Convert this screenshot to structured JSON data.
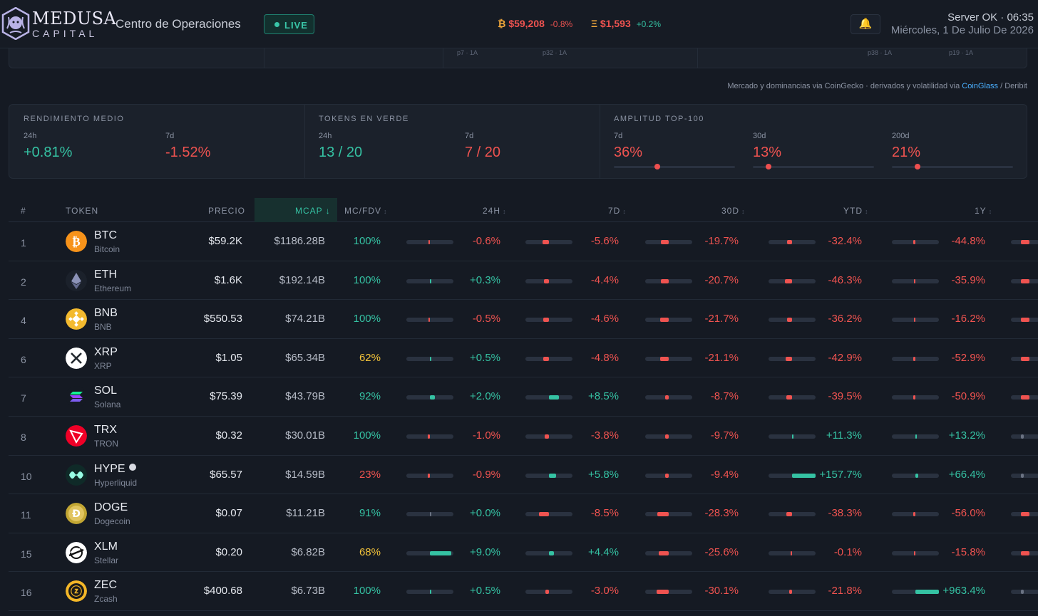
{
  "brand": {
    "name": "MEDUSA",
    "sub": "CAPITAL"
  },
  "header": {
    "title": "Centro de Operaciones",
    "live_label": "LIVE",
    "status": "Server OK · 06:35",
    "date": "Miércoles, 1 De Julio De 2026"
  },
  "tickers": [
    {
      "symbol": "₿",
      "price": "$59,208",
      "change": "-0.8%"
    },
    {
      "symbol": "Ξ",
      "price": "$1,593",
      "change": "+0.2%"
    }
  ],
  "prev_panel": {
    "labels": [
      "p7 · 1A",
      "p32 · 1A",
      "p38 · 1A",
      "p19 · 1A"
    ]
  },
  "source": {
    "prefix": "Mercado y dominancias via CoinGecko · derivados y volatilidad via ",
    "link": "CoinGlass",
    "suffix": " / Deribit"
  },
  "stats": {
    "rendimiento": {
      "label": "RENDIMIENTO MEDIO",
      "p1_label": "24h",
      "p1_value": "+0.81%",
      "p2_label": "7d",
      "p2_value": "-1.52%"
    },
    "verdes": {
      "label": "TOKENS EN VERDE",
      "p1_label": "24h",
      "p1_value": "13 / 20",
      "p2_label": "7d",
      "p2_value": "7 / 20"
    },
    "amplitud": {
      "label": "AMPLITUD TOP-100",
      "items": [
        {
          "label": "7d",
          "value": "36%",
          "level": 0.36
        },
        {
          "label": "30d",
          "value": "13%",
          "level": 0.13
        },
        {
          "label": "200d",
          "value": "21%",
          "level": 0.21
        }
      ]
    }
  },
  "table": {
    "headers": {
      "rank": "#",
      "token": "TOKEN",
      "price": "PRECIO",
      "mcap": "MCAP",
      "mcfdv": "MC/FDV",
      "h24": "24H",
      "d7": "7D",
      "d30": "30D",
      "ytd": "YTD",
      "y1": "1Y"
    },
    "sort_glyph": "↕",
    "sort_active_glyph": "↓",
    "rows": [
      {
        "rank": "1",
        "symbol": "BTC",
        "name": "Bitcoin",
        "icon": "bitcoin-icon",
        "price": "$59.2K",
        "mcap": "$1186.28B",
        "mcfdv": "100%",
        "h24": "-0.6%",
        "d7": "-5.6%",
        "d30": "-19.7%",
        "ytd": "-32.4%",
        "y1": "-44.8%"
      },
      {
        "rank": "2",
        "symbol": "ETH",
        "name": "Ethereum",
        "icon": "ethereum-icon",
        "price": "$1.6K",
        "mcap": "$192.14B",
        "mcfdv": "100%",
        "h24": "+0.3%",
        "d7": "-4.4%",
        "d30": "-20.7%",
        "ytd": "-46.3%",
        "y1": "-35.9%"
      },
      {
        "rank": "4",
        "symbol": "BNB",
        "name": "BNB",
        "icon": "bnb-icon",
        "price": "$550.53",
        "mcap": "$74.21B",
        "mcfdv": "100%",
        "h24": "-0.5%",
        "d7": "-4.6%",
        "d30": "-21.7%",
        "ytd": "-36.2%",
        "y1": "-16.2%"
      },
      {
        "rank": "6",
        "symbol": "XRP",
        "name": "XRP",
        "icon": "xrp-icon",
        "price": "$1.05",
        "mcap": "$65.34B",
        "mcfdv": "62%",
        "h24": "+0.5%",
        "d7": "-4.8%",
        "d30": "-21.1%",
        "ytd": "-42.9%",
        "y1": "-52.9%"
      },
      {
        "rank": "7",
        "symbol": "SOL",
        "name": "Solana",
        "icon": "solana-icon",
        "price": "$75.39",
        "mcap": "$43.79B",
        "mcfdv": "92%",
        "h24": "+2.0%",
        "d7": "+8.5%",
        "d30": "-8.7%",
        "ytd": "-39.5%",
        "y1": "-50.9%"
      },
      {
        "rank": "8",
        "symbol": "TRX",
        "name": "TRON",
        "icon": "tron-icon",
        "price": "$0.32",
        "mcap": "$30.01B",
        "mcfdv": "100%",
        "h24": "-1.0%",
        "d7": "-3.8%",
        "d30": "-9.7%",
        "ytd": "+11.3%",
        "y1": "+13.2%"
      },
      {
        "rank": "10",
        "symbol": "HYPE",
        "name": "Hyperliquid",
        "icon": "hyperliquid-icon",
        "price": "$65.57",
        "mcap": "$14.59B",
        "mcfdv": "23%",
        "h24": "-0.9%",
        "d7": "+5.8%",
        "d30": "-9.4%",
        "ytd": "+157.7%",
        "y1": "+66.4%",
        "dot": true
      },
      {
        "rank": "11",
        "symbol": "DOGE",
        "name": "Dogecoin",
        "icon": "dogecoin-icon",
        "price": "$0.07",
        "mcap": "$11.21B",
        "mcfdv": "91%",
        "h24": "+0.0%",
        "d7": "-8.5%",
        "d30": "-28.3%",
        "ytd": "-38.3%",
        "y1": "-56.0%"
      },
      {
        "rank": "15",
        "symbol": "XLM",
        "name": "Stellar",
        "icon": "stellar-icon",
        "price": "$0.20",
        "mcap": "$6.82B",
        "mcfdv": "68%",
        "h24": "+9.0%",
        "d7": "+4.4%",
        "d30": "-25.6%",
        "ytd": "-0.1%",
        "y1": "-15.8%"
      },
      {
        "rank": "16",
        "symbol": "ZEC",
        "name": "Zcash",
        "icon": "zcash-icon",
        "price": "$400.68",
        "mcap": "$6.73B",
        "mcfdv": "100%",
        "h24": "+0.5%",
        "d7": "-3.0%",
        "d30": "-30.1%",
        "ytd": "-21.8%",
        "y1": "+963.4%"
      }
    ]
  },
  "colors": {
    "positive": "#35c2a3",
    "negative": "#ef5350",
    "warning": "#f3c33a",
    "accent": "#35c2a3"
  }
}
